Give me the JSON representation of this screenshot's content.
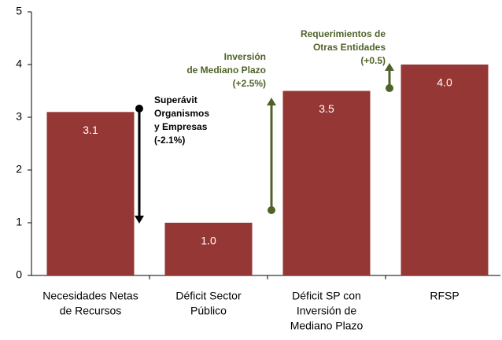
{
  "chart_data": {
    "type": "bar",
    "categories": [
      [
        "Necesidades Netas",
        "de Recursos"
      ],
      [
        "Déficit Sector",
        "Público"
      ],
      [
        "Déficit SP con",
        "Inversión de",
        "Mediano Plazo"
      ],
      [
        "RFSP"
      ]
    ],
    "values": [
      3.1,
      1.0,
      3.5,
      4.0
    ],
    "value_labels": [
      "3.1",
      "1.0",
      "3.5",
      "4.0"
    ],
    "color": "#953735",
    "ylim": [
      0,
      5
    ],
    "yticks": [
      0,
      1,
      2,
      3,
      4,
      5
    ],
    "annotations": [
      {
        "lines": [
          "Superávit",
          "Organismos",
          "y Empresas",
          "(-2.1%)"
        ],
        "color": "#000000"
      },
      {
        "lines": [
          "Inversión",
          "de Mediano Plazo",
          "(+2.5%)"
        ],
        "color": "#4f6228"
      },
      {
        "lines": [
          "Requerimientos de",
          "Otras Entidades",
          "(+0.5)"
        ],
        "color": "#4f6228"
      }
    ]
  }
}
